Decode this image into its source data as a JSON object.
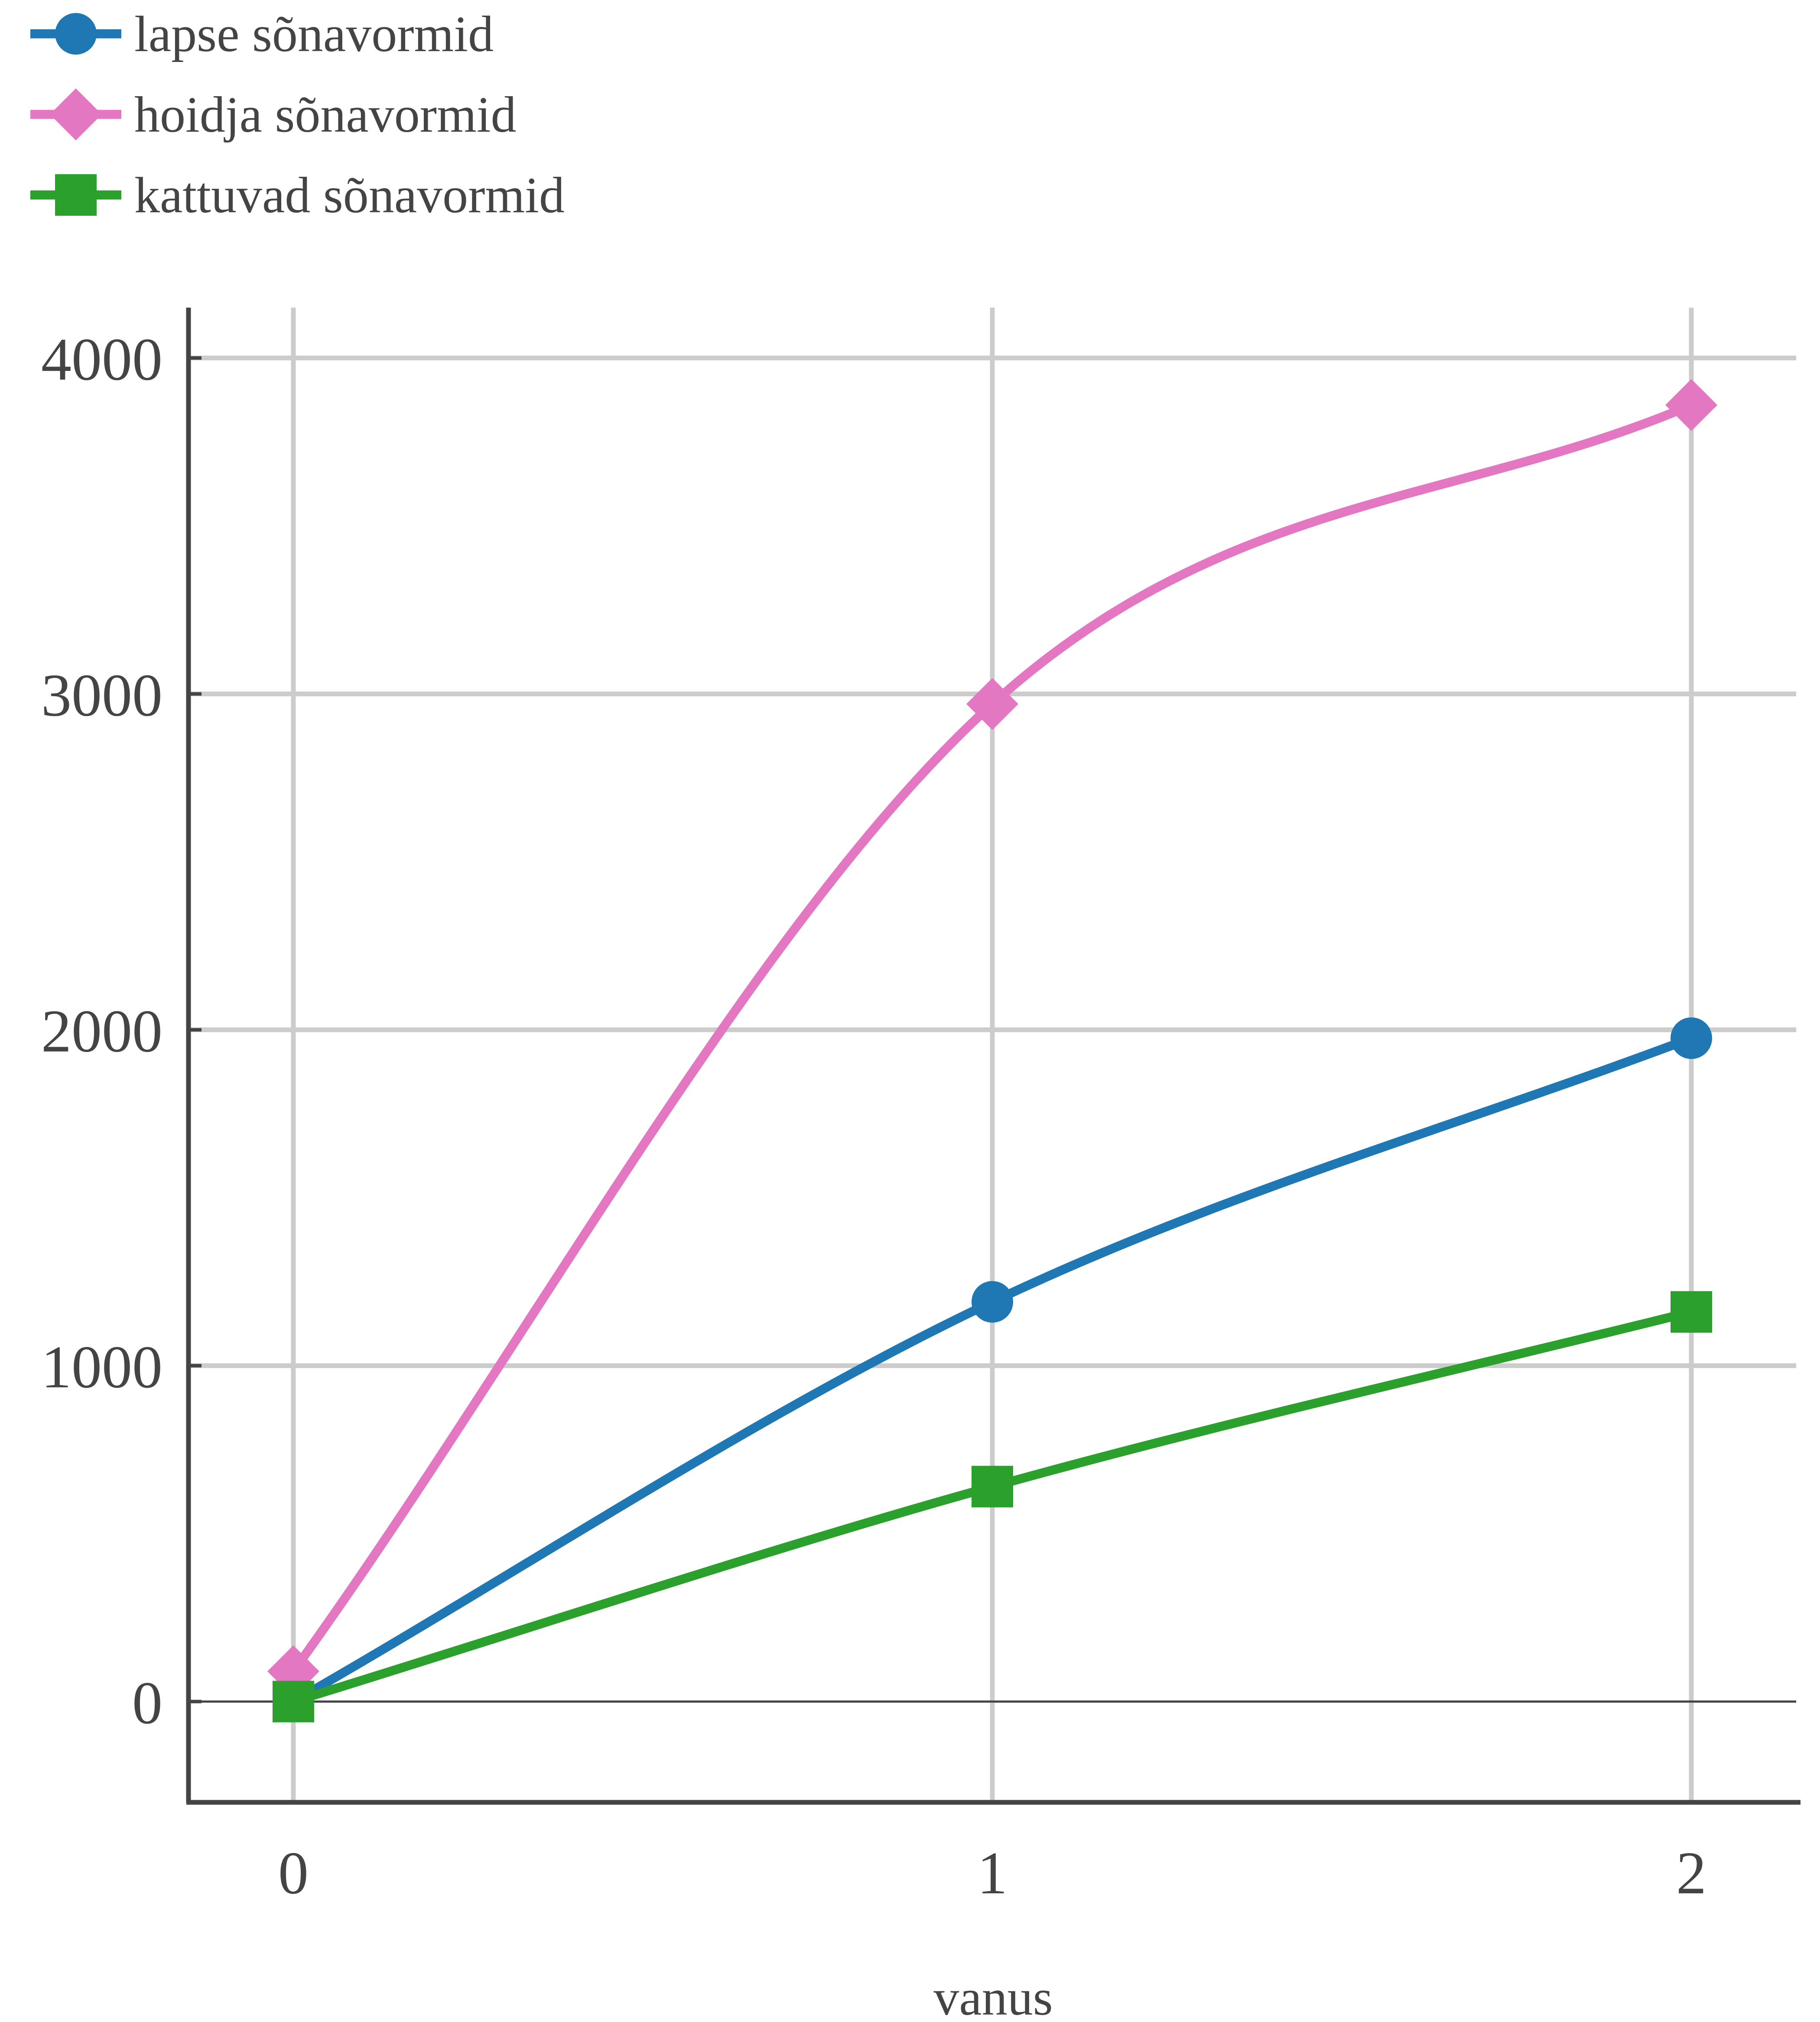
{
  "chart_data": {
    "type": "line",
    "title": "",
    "xlabel": "vanus",
    "ylabel": "",
    "x": [
      0,
      1,
      2
    ],
    "x_ticks": [
      "0",
      "1",
      "2"
    ],
    "y_ticks": [
      "0",
      "1000",
      "2000",
      "3000",
      "4000"
    ],
    "xlim": [
      -0.15,
      2.15
    ],
    "ylim": [
      -300,
      4150
    ],
    "grid": true,
    "legend_position": "top-left",
    "series": [
      {
        "name": "lapse sõnavormid",
        "values": [
          0,
          1190,
          1975
        ],
        "color": "#1f77b4",
        "marker": "circle"
      },
      {
        "name": "hoidja sõnavormid",
        "values": [
          90,
          2970,
          3860
        ],
        "color": "#e377c2",
        "marker": "diamond"
      },
      {
        "name": "kattuvad sõnavormid",
        "values": [
          0,
          640,
          1160
        ],
        "color": "#2ca02c",
        "marker": "square"
      }
    ]
  }
}
